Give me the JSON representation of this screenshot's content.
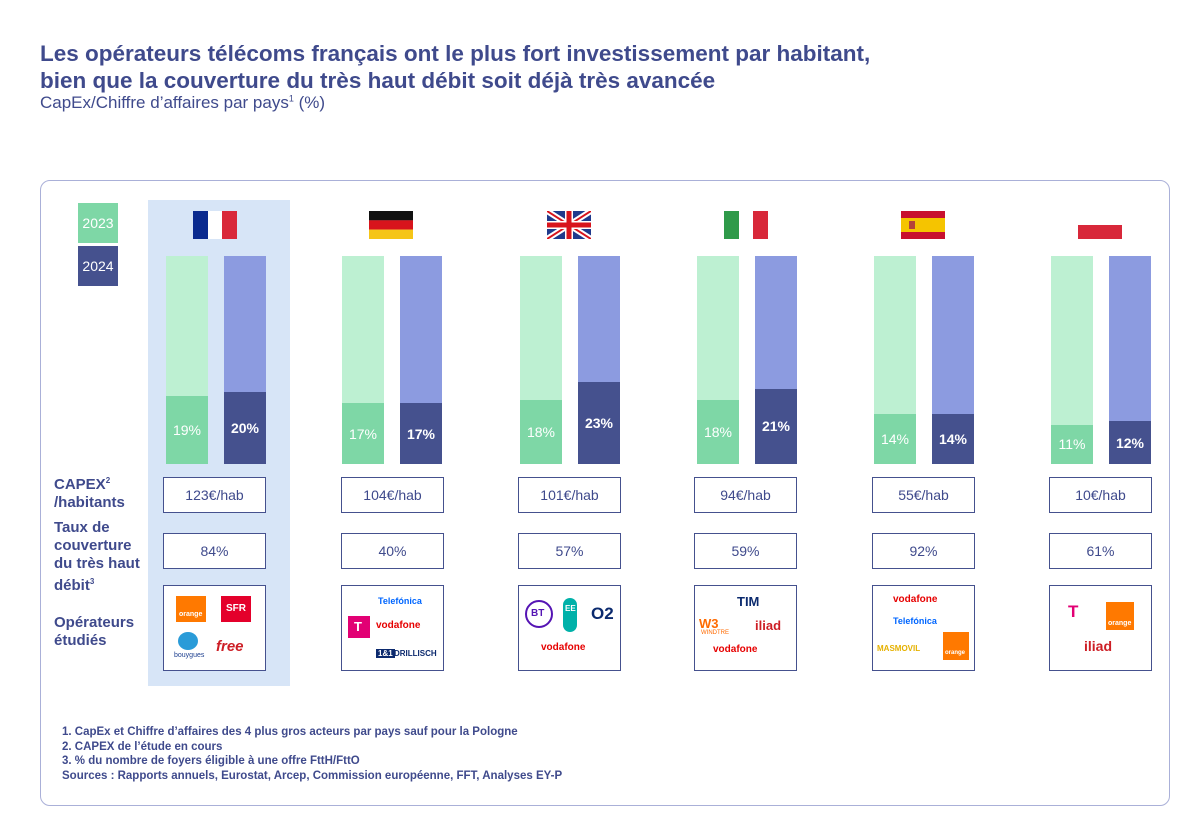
{
  "title_line1": "Les opérateurs télécoms français ont le plus fort investissement par habitant,",
  "title_line2": "bien que la couverture du très haut débit soit déjà très avancée",
  "subtitle_main": "CapEx/Chiffre d’affaires par pays",
  "subtitle_sup": "1",
  "subtitle_unit": " (%)",
  "legend": {
    "y2023": "2023",
    "y2024": "2024"
  },
  "rows": {
    "capex_line1": "CAPEX",
    "capex_sup": "2",
    "capex_line2": "/habitants",
    "coverage_lines": [
      "Taux de",
      "couverture",
      "du très haut",
      "débit"
    ],
    "coverage_sup": "3",
    "operators_lines": [
      "Opérateurs",
      "étudiés"
    ]
  },
  "chart_data": {
    "type": "bar",
    "title": "Les opérateurs télécoms français ont le plus fort investissement par habitant, bien que la couverture du très haut débit soit déjà très avancée",
    "subtitle": "CapEx/Chiffre d’affaires par pays1 (%)",
    "categories": [
      "France",
      "Allemagne",
      "Royaume-Uni",
      "Italie",
      "Espagne",
      "Pologne"
    ],
    "series": [
      {
        "name": "2023",
        "values": [
          19,
          17,
          18,
          18,
          14,
          11
        ],
        "labels": [
          "19%",
          "17%",
          "18%",
          "18%",
          "14%",
          "11%"
        ]
      },
      {
        "name": "2024",
        "values": [
          20,
          17,
          23,
          21,
          14,
          12
        ],
        "labels": [
          "20%",
          "17%",
          "23%",
          "21%",
          "14%",
          "12%"
        ]
      }
    ],
    "ylim": [
      0,
      100
    ],
    "capex_per_inhabitant": [
      "123€/hab",
      "104€/hab",
      "101€/hab",
      "94€/hab",
      "55€/hab",
      "10€/hab"
    ],
    "coverage": [
      "84%",
      "40%",
      "57%",
      "59%",
      "92%",
      "61%"
    ],
    "colors": {
      "y2023_fill": "#7ed7a6",
      "y2023_bg": "#bdf0d2",
      "y2024_fill": "#45518e",
      "y2024_bg": "#8c9be0",
      "highlight": "#d7e5f7"
    }
  },
  "operators": {
    "france": {
      "orange": "orange",
      "sfr": "SFR",
      "bouygues": "bouygues",
      "free": "free"
    },
    "germany": {
      "telefonica": "Telefónica",
      "vodafone": "vodafone",
      "drillisch": "DRILLISCH",
      "one_and_one": "1&1"
    },
    "uk": {
      "bt": "BT",
      "ee": "EE",
      "o2": "O2",
      "vodafone": "vodafone"
    },
    "italy": {
      "tim": "TIM",
      "windtre": "WINDTRE",
      "iliad": "iliad",
      "vodafone": "vodafone"
    },
    "spain": {
      "vodafone": "vodafone",
      "telefonica": "Telefónica",
      "masmovil": "MASMOVIL",
      "orange": "orange"
    },
    "poland": {
      "orange": "orange",
      "iliad": "iliad"
    }
  },
  "footnotes": [
    "1. CapEx et Chiffre d’affaires des 4 plus gros acteurs par pays sauf pour la Pologne",
    "2. CAPEX de l’étude en cours",
    "3. % du nombre de foyers éligible à une offre FttH/FttO",
    "Sources : Rapports annuels, Eurostat, Arcep, Commission européenne, FFT, Analyses EY-P"
  ]
}
